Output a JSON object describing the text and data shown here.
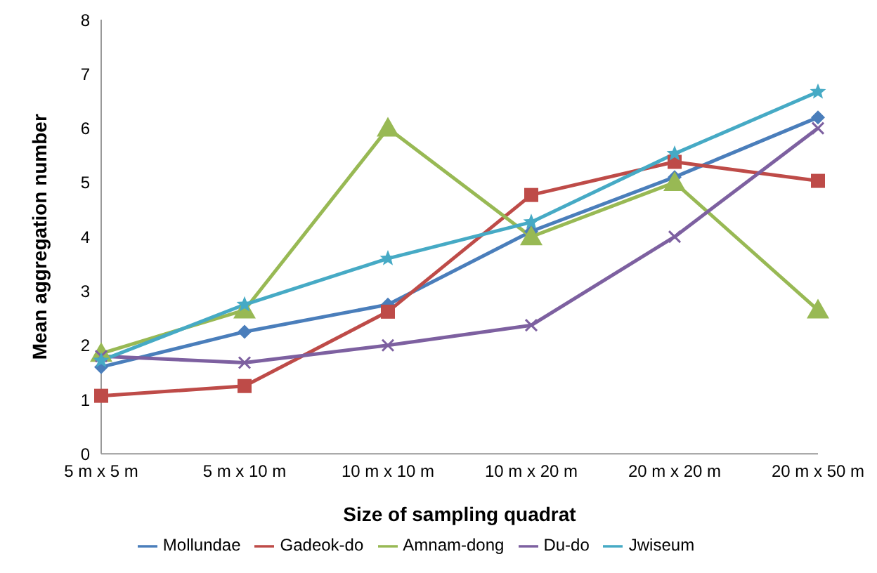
{
  "chart_data": {
    "type": "line",
    "xlabel": "Size of sampling quadrat",
    "ylabel": "Mean aggregation number",
    "categories": [
      "5 m x 5 m",
      "5 m x 10 m",
      "10 m x 10 m",
      "10 m x 20 m",
      "20 m x 20 m",
      "20 m x 50 m"
    ],
    "ylim": [
      0,
      8
    ],
    "yticks": [
      0,
      1,
      2,
      3,
      4,
      5,
      6,
      7,
      8
    ],
    "grid": false,
    "legend": "bottom",
    "line_style": "solid",
    "series": [
      {
        "name": "Mollundae",
        "color": "#4a7ebb",
        "marker": "diamond",
        "values": [
          1.6,
          2.25,
          2.75,
          4.1,
          5.1,
          6.2
        ]
      },
      {
        "name": "Gadeok-do",
        "color": "#be4b48",
        "marker": "square",
        "values": [
          1.07,
          1.25,
          2.62,
          4.77,
          5.38,
          5.03
        ]
      },
      {
        "name": "Amnam-dong",
        "color": "#98b954",
        "marker": "triangle",
        "values": [
          1.85,
          2.65,
          6.0,
          4.0,
          5.0,
          2.65
        ]
      },
      {
        "name": "Du-do",
        "color": "#7d60a0",
        "marker": "cross",
        "values": [
          1.8,
          1.68,
          2.0,
          2.37,
          4.0,
          6.0
        ]
      },
      {
        "name": "Jwiseum",
        "color": "#46aac5",
        "marker": "star",
        "values": [
          1.72,
          2.75,
          3.6,
          4.27,
          5.53,
          6.67
        ]
      }
    ]
  }
}
